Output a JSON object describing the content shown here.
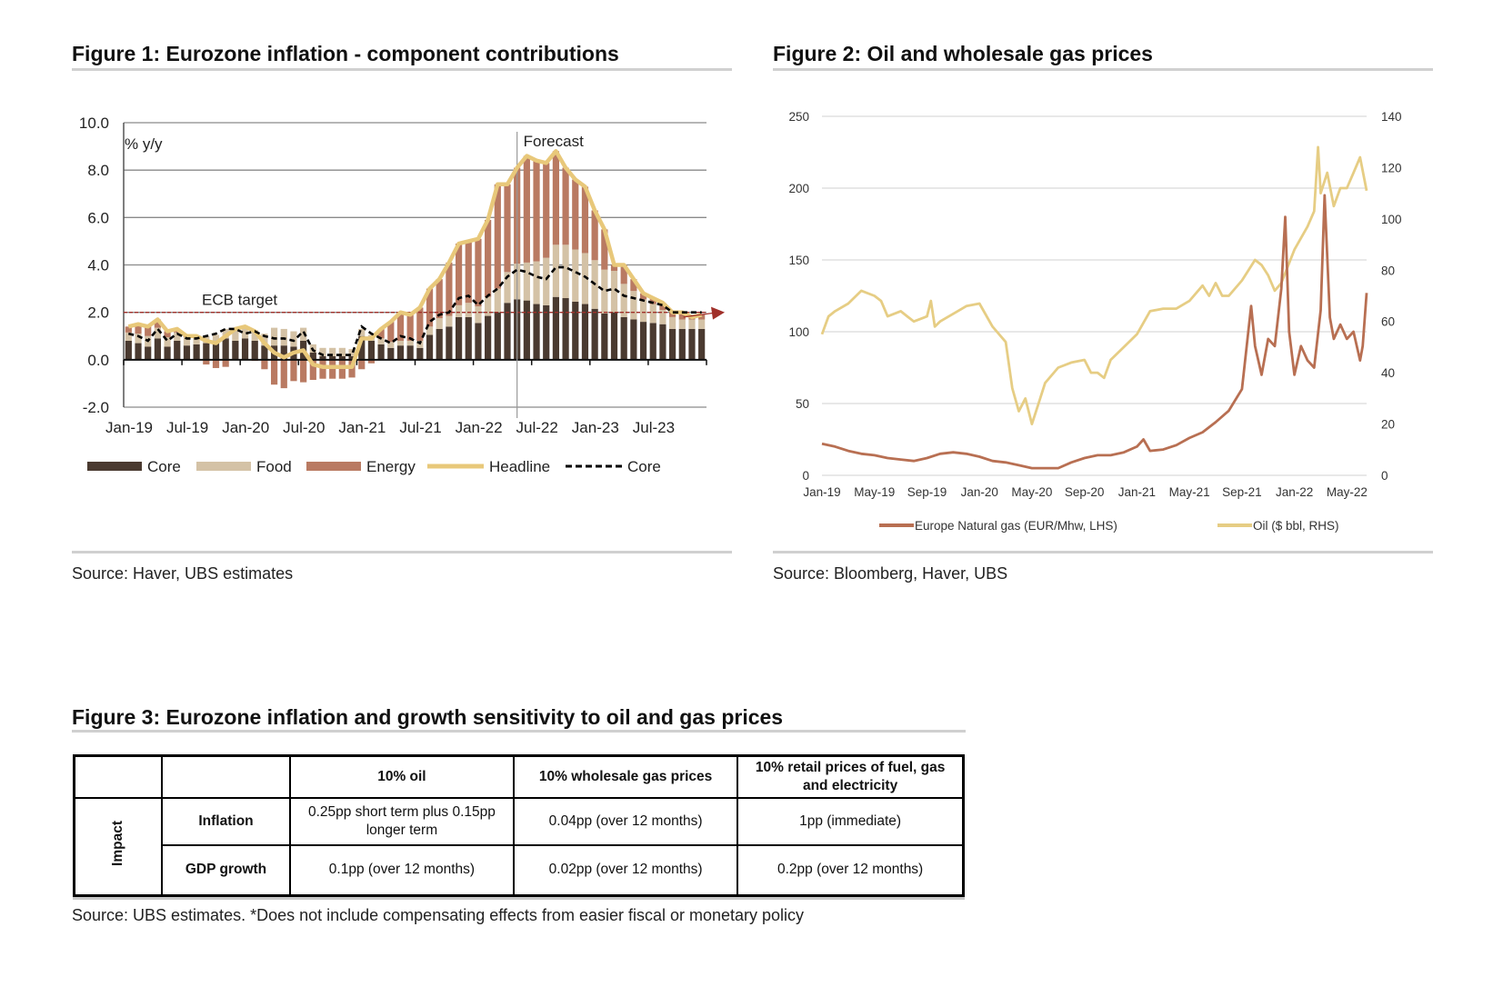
{
  "figure1": {
    "title": "Figure 1: Eurozone inflation - component contributions",
    "source": "Source: Haver, UBS estimates"
  },
  "figure2": {
    "title": "Figure 2: Oil and wholesale gas prices",
    "source": "Source: Bloomberg, Haver, UBS"
  },
  "figure3": {
    "title": "Figure 3: Eurozone inflation and growth sensitivity to oil and gas prices",
    "source": "Source: UBS estimates. *Does not include compensating effects from easier fiscal or monetary policy",
    "group_label": "Impact",
    "columns": [
      "10% oil",
      "10% wholesale gas prices",
      "10% retail prices of fuel, gas and electricity"
    ],
    "rows": [
      {
        "label": "Inflation",
        "cells": [
          "0.25pp short term plus 0.15pp longer term",
          "0.04pp (over 12 months)",
          "1pp (immediate)"
        ]
      },
      {
        "label": "GDP growth",
        "cells": [
          "0.1pp (over 12 months)",
          "0.02pp (over 12 months)",
          "0.2pp (over 12 months)"
        ]
      }
    ]
  },
  "chart_data": [
    {
      "type": "bar",
      "stacked": true,
      "unit_label": "% y/y",
      "ylim": [
        -2,
        10
      ],
      "yticks": [
        "10.0",
        "8.0",
        "6.0",
        "4.0",
        "2.0",
        "0.0",
        "-2.0"
      ],
      "ytick_values": [
        10,
        8,
        6,
        4,
        2,
        0,
        -2
      ],
      "xtick_labels": [
        "Jan-19",
        "Jul-19",
        "Jan-20",
        "Jul-20",
        "Jan-21",
        "Jul-21",
        "Jan-22",
        "Jul-22",
        "Jan-23",
        "Jul-23"
      ],
      "start_month": "Jan-19",
      "n_months": 60,
      "forecast_label": "Forecast",
      "forecast_start_index": 40.5,
      "ecb_target_label": "ECB target",
      "ecb_target": 2.0,
      "colors": {
        "core": "#4a3a30",
        "food": "#d4c2a6",
        "energy": "#b97a62",
        "headline": "#e8c87a",
        "core_line": "#000000",
        "target": "#a0302a"
      },
      "legend": [
        "Core",
        "Food",
        "Energy",
        "Headline",
        "Core"
      ],
      "series": [
        {
          "name": "Core",
          "kind": "bar",
          "values": [
            0.8,
            0.7,
            0.55,
            0.9,
            0.55,
            0.8,
            0.6,
            0.65,
            0.7,
            0.75,
            0.9,
            0.8,
            0.9,
            0.8,
            0.6,
            0.6,
            0.6,
            0.55,
            0.8,
            0.3,
            0.15,
            0.15,
            0.15,
            0.15,
            1.0,
            0.8,
            0.65,
            0.5,
            0.6,
            0.6,
            0.5,
            1.05,
            1.3,
            1.4,
            1.8,
            1.8,
            1.55,
            1.85,
            2.0,
            2.4,
            2.55,
            2.5,
            2.35,
            2.3,
            2.65,
            2.6,
            2.45,
            2.35,
            2.15,
            1.95,
            2.0,
            1.8,
            1.7,
            1.6,
            1.55,
            1.5,
            1.3,
            1.3,
            1.3,
            1.3
          ]
        },
        {
          "name": "Food",
          "kind": "bar",
          "values": [
            0.35,
            0.4,
            0.45,
            0.45,
            0.4,
            0.35,
            0.35,
            0.35,
            0.3,
            0.3,
            0.4,
            0.45,
            0.45,
            0.45,
            0.5,
            0.75,
            0.7,
            0.65,
            0.55,
            0.35,
            0.35,
            0.35,
            0.35,
            0.3,
            0.3,
            0.25,
            0.25,
            0.25,
            0.2,
            0.2,
            0.3,
            0.35,
            0.45,
            0.45,
            0.5,
            0.6,
            0.7,
            0.8,
            1.0,
            1.3,
            1.5,
            1.6,
            1.8,
            2.0,
            2.2,
            2.25,
            2.2,
            2.15,
            2.05,
            1.85,
            1.75,
            1.4,
            1.2,
            0.95,
            0.8,
            0.6,
            0.5,
            0.4,
            0.4,
            0.4
          ]
        },
        {
          "name": "Energy",
          "kind": "bar",
          "values": [
            0.25,
            0.4,
            0.4,
            0.35,
            0.25,
            0.15,
            0.05,
            0,
            -0.2,
            -0.35,
            -0.3,
            0.05,
            0.05,
            -0.05,
            -0.4,
            -1.05,
            -1.2,
            -0.9,
            -0.95,
            -0.85,
            -0.8,
            -0.8,
            -0.8,
            -0.75,
            -0.4,
            -0.15,
            0.4,
            0.85,
            1.2,
            1.1,
            1.4,
            1.6,
            1.65,
            2.25,
            2.6,
            2.6,
            2.85,
            3.25,
            4.4,
            3.7,
            4.05,
            4.5,
            4.25,
            4.0,
            3.95,
            3.25,
            2.95,
            2.8,
            2.1,
            1.7,
            0.25,
            0.8,
            0.5,
            0.25,
            0.25,
            0.3,
            0.2,
            0.3,
            0.1,
            0.2
          ]
        },
        {
          "name": "Headline",
          "kind": "line",
          "values": [
            1.4,
            1.5,
            1.4,
            1.7,
            1.2,
            1.3,
            1.0,
            1.0,
            0.8,
            0.7,
            1.0,
            1.3,
            1.4,
            1.2,
            0.7,
            0.3,
            0.1,
            0.3,
            0.4,
            -0.2,
            -0.3,
            -0.3,
            -0.3,
            -0.3,
            0.9,
            0.9,
            1.3,
            1.6,
            2.0,
            1.9,
            2.2,
            3.0,
            3.4,
            4.1,
            4.9,
            5.0,
            5.1,
            5.9,
            7.4,
            7.4,
            8.1,
            8.6,
            8.4,
            8.3,
            8.8,
            8.1,
            7.6,
            7.3,
            6.3,
            5.5,
            4.0,
            4.0,
            3.4,
            2.8,
            2.6,
            2.4,
            2.0,
            2.0,
            1.8,
            1.9
          ]
        },
        {
          "name": "Core",
          "kind": "dashed-line",
          "values": [
            1.1,
            1.0,
            0.8,
            1.3,
            0.8,
            1.1,
            0.9,
            0.9,
            1.0,
            1.1,
            1.3,
            1.3,
            1.1,
            1.2,
            1.0,
            0.9,
            0.9,
            0.8,
            1.2,
            0.4,
            0.2,
            0.2,
            0.2,
            0.2,
            1.4,
            1.1,
            0.9,
            0.7,
            1.0,
            0.9,
            0.7,
            1.6,
            1.9,
            2.0,
            2.6,
            2.7,
            2.3,
            2.7,
            3.0,
            3.5,
            3.8,
            3.7,
            3.5,
            3.4,
            3.9,
            3.9,
            3.7,
            3.5,
            3.2,
            2.9,
            3.0,
            2.7,
            2.6,
            2.5,
            2.4,
            2.3,
            2.0,
            2.0,
            2.0,
            2.0
          ]
        }
      ]
    },
    {
      "type": "line",
      "ylim_left": [
        0,
        250
      ],
      "ylim_right": [
        0,
        140
      ],
      "yticks_left": [
        "250",
        "200",
        "150",
        "100",
        "50",
        "0"
      ],
      "yticks_left_values": [
        250,
        200,
        150,
        100,
        50,
        0
      ],
      "yticks_right": [
        "140",
        "120",
        "100",
        "80",
        "60",
        "40",
        "20",
        "0"
      ],
      "yticks_right_values": [
        140,
        120,
        100,
        80,
        60,
        40,
        20,
        0
      ],
      "xtick_labels": [
        "Jan-19",
        "May-19",
        "Sep-19",
        "Jan-20",
        "May-20",
        "Sep-20",
        "Jan-21",
        "May-21",
        "Sep-21",
        "Jan-22",
        "May-22"
      ],
      "x_unit": "months since Jan-19",
      "x_max": 41.5,
      "series": [
        {
          "name": "Europe Natural gas (EUR/Mhw, LHS)",
          "axis": "left",
          "color": "#b86f52",
          "points": [
            [
              0,
              22
            ],
            [
              1,
              20
            ],
            [
              2,
              17
            ],
            [
              3,
              15
            ],
            [
              4,
              14
            ],
            [
              5,
              12
            ],
            [
              6,
              11
            ],
            [
              7,
              10
            ],
            [
              8,
              12
            ],
            [
              9,
              15
            ],
            [
              10,
              16
            ],
            [
              11,
              15
            ],
            [
              12,
              13
            ],
            [
              13,
              10
            ],
            [
              14,
              9
            ],
            [
              15,
              7
            ],
            [
              16,
              5
            ],
            [
              17,
              5
            ],
            [
              18,
              5
            ],
            [
              19,
              9
            ],
            [
              20,
              12
            ],
            [
              21,
              14
            ],
            [
              22,
              14
            ],
            [
              23,
              16
            ],
            [
              24,
              20
            ],
            [
              24.5,
              25
            ],
            [
              25,
              17
            ],
            [
              26,
              18
            ],
            [
              27,
              21
            ],
            [
              28,
              26
            ],
            [
              29,
              30
            ],
            [
              30,
              37
            ],
            [
              31,
              45
            ],
            [
              32,
              60
            ],
            [
              32.7,
              118
            ],
            [
              33,
              90
            ],
            [
              33.5,
              70
            ],
            [
              34,
              95
            ],
            [
              34.5,
              90
            ],
            [
              35,
              130
            ],
            [
              35.3,
              180
            ],
            [
              35.6,
              100
            ],
            [
              36,
              70
            ],
            [
              36.5,
              90
            ],
            [
              37,
              80
            ],
            [
              37.5,
              75
            ],
            [
              38,
              115
            ],
            [
              38.3,
              195
            ],
            [
              38.7,
              110
            ],
            [
              39,
              95
            ],
            [
              39.5,
              105
            ],
            [
              40,
              95
            ],
            [
              40.5,
              100
            ],
            [
              41,
              80
            ],
            [
              41.2,
              90
            ],
            [
              41.5,
              127
            ]
          ]
        },
        {
          "name": "Oil ($ bbl, RHS)",
          "axis": "right",
          "color": "#e6cd84",
          "points": [
            [
              0,
              55
            ],
            [
              0.5,
              62
            ],
            [
              1,
              64
            ],
            [
              2,
              67
            ],
            [
              3,
              72
            ],
            [
              4,
              70
            ],
            [
              4.5,
              68
            ],
            [
              5,
              62
            ],
            [
              6,
              64
            ],
            [
              6.5,
              62
            ],
            [
              7,
              60
            ],
            [
              8,
              62
            ],
            [
              8.3,
              68
            ],
            [
              8.6,
              58
            ],
            [
              9,
              60
            ],
            [
              10,
              63
            ],
            [
              11,
              66
            ],
            [
              12,
              67
            ],
            [
              13,
              58
            ],
            [
              14,
              52
            ],
            [
              14.5,
              34
            ],
            [
              15,
              25
            ],
            [
              15.5,
              30
            ],
            [
              16,
              20
            ],
            [
              16.5,
              28
            ],
            [
              17,
              36
            ],
            [
              18,
              42
            ],
            [
              19,
              44
            ],
            [
              20,
              45
            ],
            [
              20.5,
              40
            ],
            [
              21,
              40
            ],
            [
              21.5,
              38
            ],
            [
              22,
              45
            ],
            [
              23,
              50
            ],
            [
              24,
              55
            ],
            [
              25,
              64
            ],
            [
              26,
              65
            ],
            [
              27,
              65
            ],
            [
              28,
              68
            ],
            [
              29,
              74
            ],
            [
              29.5,
              70
            ],
            [
              30,
              75
            ],
            [
              30.5,
              70
            ],
            [
              31,
              70
            ],
            [
              32,
              76
            ],
            [
              33,
              84
            ],
            [
              33.5,
              82
            ],
            [
              34,
              78
            ],
            [
              34.5,
              72
            ],
            [
              35,
              75
            ],
            [
              36,
              88
            ],
            [
              37,
              97
            ],
            [
              37.5,
              103
            ],
            [
              37.8,
              128
            ],
            [
              38,
              110
            ],
            [
              38.5,
              118
            ],
            [
              39,
              105
            ],
            [
              39.5,
              112
            ],
            [
              40,
              112
            ],
            [
              40.5,
              118
            ],
            [
              41,
              124
            ],
            [
              41.5,
              111
            ]
          ]
        }
      ]
    }
  ]
}
